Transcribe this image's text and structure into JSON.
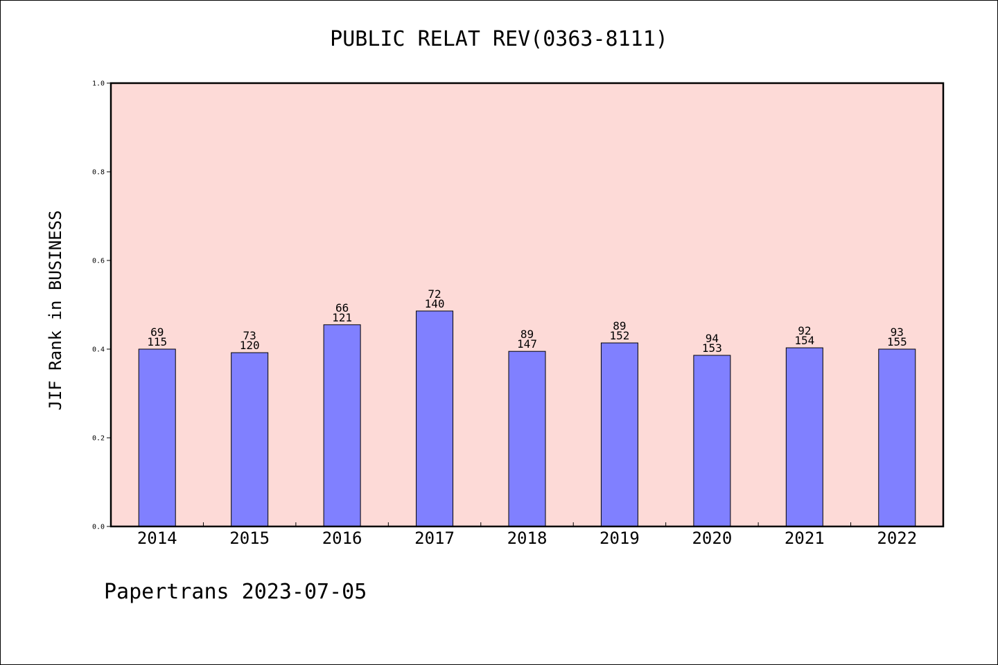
{
  "chart_data": {
    "type": "bar",
    "title": "PUBLIC RELAT REV(0363-8111)",
    "xlabel": "",
    "ylabel": "JIF Rank in BUSINESS",
    "ylim": [
      0,
      1.0
    ],
    "yticks": [
      "0.0",
      "0.2",
      "0.4",
      "0.6",
      "0.8",
      "1.0"
    ],
    "categories": [
      "2014",
      "2015",
      "2016",
      "2017",
      "2018",
      "2019",
      "2020",
      "2021",
      "2022"
    ],
    "ranks": [
      "69",
      "73",
      "66",
      "72",
      "89",
      "89",
      "94",
      "92",
      "93"
    ],
    "totals": [
      "115",
      "120",
      "121",
      "140",
      "147",
      "152",
      "153",
      "154",
      "155"
    ],
    "values": [
      0.4,
      0.392,
      0.455,
      0.486,
      0.395,
      0.414,
      0.386,
      0.403,
      0.4
    ],
    "bar_color": "#8080ff",
    "plot_background": "#fddad7",
    "grid": false
  },
  "footer": "Papertrans 2023-07-05"
}
